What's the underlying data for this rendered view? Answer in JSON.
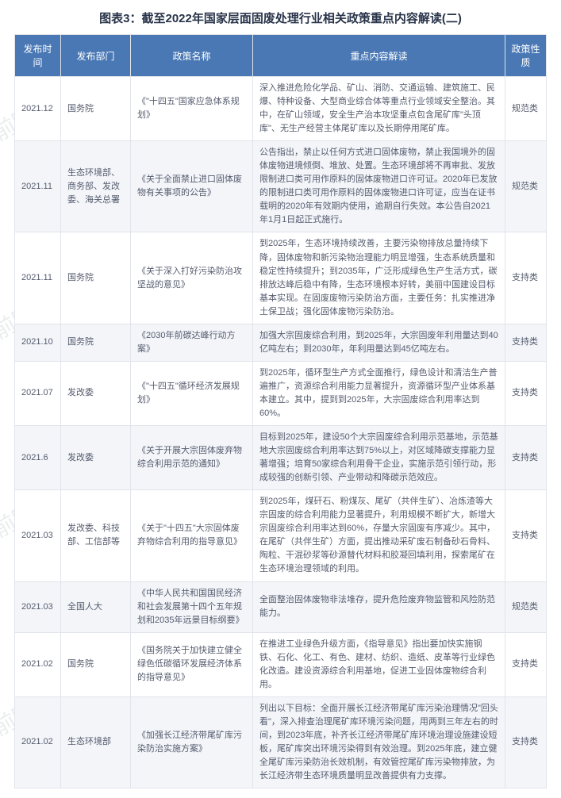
{
  "title": "图表3：截至2022年国家层面固废处理行业相关政策重点内容解读(二)",
  "watermarkText": "前瞻产业研究院",
  "columns": [
    "发布时间",
    "发布部门",
    "政策名称",
    "重点内容解读",
    "政策性质"
  ],
  "rows": [
    {
      "date": "2021.12",
      "dept": "国务院",
      "name": "《\"十四五\"国家应急体系规划》",
      "content": "深入推进危险化学品、矿山、消防、交通运输、建筑施工、民爆、特种设备、大型商业综合体等重点行业领域安全整治。其中，在矿山领域，安全生产治本攻坚重点包含尾矿库\"头顶库\"、无生产经营主体尾矿库以及长期停用尾矿库。",
      "type": "规范类"
    },
    {
      "date": "2021.11",
      "dept": "生态环境部、商务部、发改委、海关总署",
      "name": "《关于全面禁止进口固体废物有关事项的公告》",
      "content": "公告指出，禁止以任何方式进口固体废物，禁止我国境外的固体废物进境倾倒、堆放、处置。生态环境部将不再审批、发放限制进口类可用作原料的固体废物进口许可证。2020年已发放的限制进口类可用作原料的固体废物进口许可证，应当在证书载明的2020年有效期内使用，逾期自行失效。本公告自2021年1月1日起正式施行。",
      "type": "规范类"
    },
    {
      "date": "2021.11",
      "dept": "国务院",
      "name": "《关于深入打好污染防治攻坚战的意见》",
      "content": "到2025年，生态环境持续改善，主要污染物排放总量持续下降，固体废物和新污染物治理能力明显增强，生态系统质量和稳定性持续提升；到2035年，广泛形成绿色生产生活方式，碳排放达峰后稳中有降，生态环境根本好转，美丽中国建设目标基本实现。在固废废物污染防治方面，主要任务：扎实推进净土保卫战；强化固体废物污染防治。",
      "type": "支持类"
    },
    {
      "date": "2021.10",
      "dept": "国务院",
      "name": "《2030年前碳达峰行动方案》",
      "content": "加强大宗固废综合利用，到2025年，大宗固废年利用量达到40亿吨左右；到2030年，年利用量达到45亿吨左右。",
      "type": "支持类"
    },
    {
      "date": "2021.07",
      "dept": "发改委",
      "name": "《\"十四五\"循环经济发展规划》",
      "content": "到2025年，循环型生产方式全面推行，绿色设计和清洁生产普遍推广，资源综合利用能力显著提升，资源循环型产业体系基本建立。其中，提到到2025年，大宗固废综合利用率达到60%。",
      "type": "支持类"
    },
    {
      "date": "2021.6",
      "dept": "发改委",
      "name": "《关于开展大宗固体废弃物综合利用示范的通知》",
      "content": "目标到2025年，建设50个大宗固废综合利用示范基地，示范基地大宗固废综合利用率达到75%以上，对区域降碳支撑能力显著增强；培育50家综合利用骨干企业，实施示范引领行动，形成较强的创新引领、产业带动和降碳示范效应。",
      "type": "支持类"
    },
    {
      "date": "2021.03",
      "dept": "发改委、科技部、工信部等",
      "name": "《关于\"十四五\"大宗固体废弃物综合利用的指导意见》",
      "content": "到2025年，煤矸石、粉煤灰、尾矿（共伴生矿）、冶炼渣等大宗固废的综合利用能力显著提升，利用规模不断扩大，新增大宗固废综合利用率达到60%，存量大宗固废有序减少。其中，在尾矿（共伴生矿）方面，提出推动采矿废石制备砂石骨料、陶粒、干混砂浆等砂源替代材料和胶凝回填利用，探索尾矿在生态环境治理领域的利用。",
      "type": "支持类"
    },
    {
      "date": "2021.03",
      "dept": "全国人大",
      "name": "《中华人民共和国国民经济和社会发展第十四个五年规划和2035年远景目标纲要》",
      "content": "全面整治固体废物非法堆存，提升危险废弃物监管和风险防范能力。",
      "type": "规范类"
    },
    {
      "date": "2021.02",
      "dept": "国务院",
      "name": "《国务院关于加快建立健全绿色低碳循环发展经济体系的指导意见》",
      "content": "在推进工业绿色升级方面，《指导意见》指出要加快实施钢铁、石化、化工、有色、建材、纺织、造纸、皮革等行业绿色化改造。建设资源综合利用基地，促进工业固体废物综合利用。",
      "type": "支持类"
    },
    {
      "date": "2021.02",
      "dept": "生态环境部",
      "name": "《加强长江经济带尾矿库污染防治实施方案》",
      "content": "列出以下目标：全面开展长江经济带尾矿库污染治理情况\"回头看\"，深入排查治理尾矿库环境污染问题，用两到三年左右的时间，到2023年底，补齐长江经济带尾矿库环境治理设施建设短板，尾矿库突出环境污染得到有效治理。到2025年底，建立健全尾矿库污染防治长效机制，有效管控尾矿库污染物排放，为长江经济带生态环境质量明显改善提供有力支撑。",
      "type": "支持类"
    }
  ],
  "headerBg": "#4a78b5",
  "headerColor": "#ffffff",
  "borderColor": "#e0e4ea",
  "rowAltBg": "#f3f5f9",
  "textColor": "#555c6e"
}
